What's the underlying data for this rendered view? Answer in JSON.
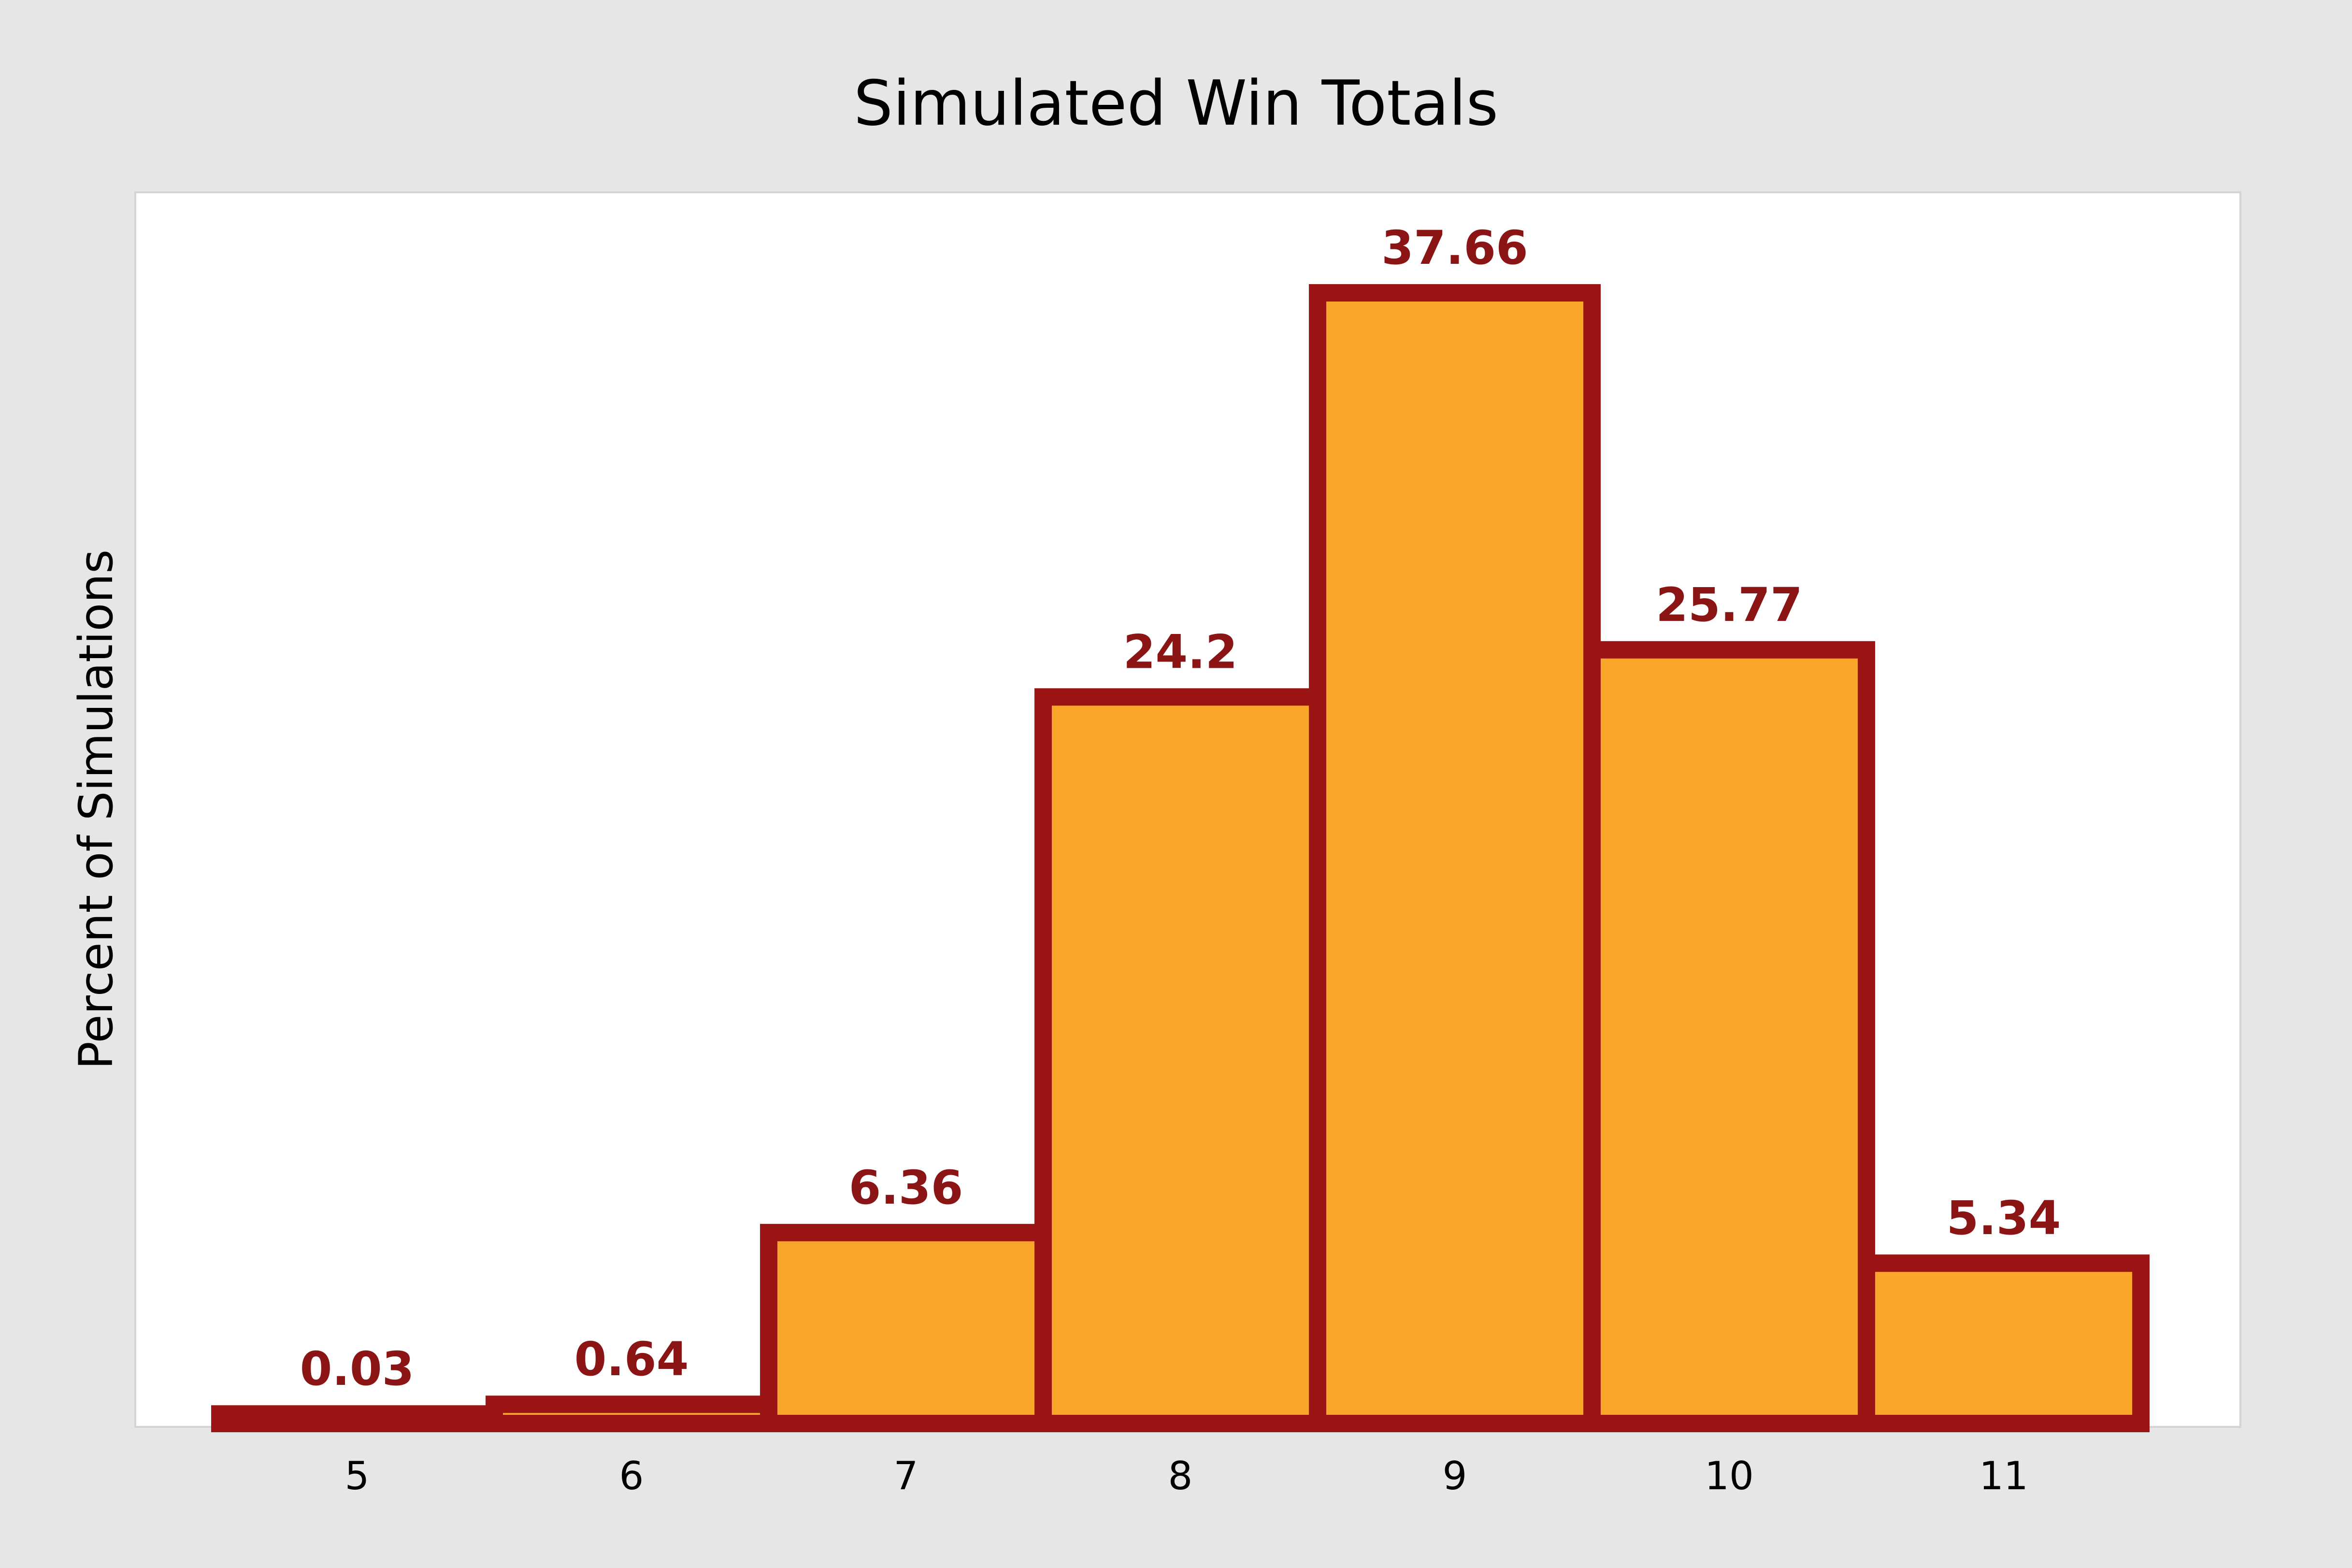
{
  "chart_data": {
    "type": "bar",
    "title": "Simulated Win Totals",
    "xlabel": "",
    "ylabel": "Percent of Simulations",
    "categories": [
      "5",
      "6",
      "7",
      "8",
      "9",
      "10",
      "11"
    ],
    "values": [
      0.03,
      0.64,
      6.36,
      24.2,
      37.66,
      25.77,
      5.34
    ],
    "data_labels": [
      "0.03",
      "0.64",
      "6.36",
      "24.2",
      "37.66",
      "25.77",
      "5.34"
    ],
    "ylim": [
      0,
      40
    ],
    "grid": false,
    "legend": "none",
    "bar_gap": 0
  },
  "colors": {
    "page_background": "#e6e6e6",
    "plot_background": "#ffffff",
    "bar_fill": "#f9a62a",
    "bar_edge": "#9b1515",
    "data_label": "#8b1515",
    "text": "#000000"
  }
}
